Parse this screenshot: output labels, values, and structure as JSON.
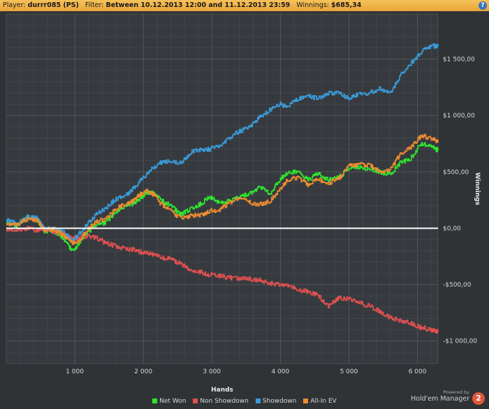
{
  "header": {
    "player_label": "Player:",
    "player_value": "durrr085 (PS)",
    "filter_label": "Filter:",
    "filter_value": "Between 10.12.2013 12:00 and 11.12.2013 23:59",
    "winnings_label": "Winnings:",
    "winnings_value": "$685,34",
    "help_glyph": "?"
  },
  "powered": {
    "line1": "Powered by",
    "line2": "Hold'em Manager",
    "logo_text": "2"
  },
  "chart_data": {
    "type": "line",
    "xlabel": "Hands",
    "ylabel": "Winnings",
    "xlim": [
      0,
      6300
    ],
    "ylim": [
      -1200,
      1900
    ],
    "x_ticks": [
      1000,
      2000,
      3000,
      4000,
      5000,
      6000
    ],
    "x_tick_labels": [
      "1 000",
      "2 000",
      "3 000",
      "4 000",
      "5 000",
      "6 000"
    ],
    "y_ticks": [
      1500,
      1000,
      500,
      0,
      -500,
      -1000
    ],
    "y_tick_labels": [
      "$1 500,00",
      "$1 000,00",
      "$500,00",
      "$0,00",
      "-$500,00",
      "-$1 000,00"
    ],
    "legend_position": "bottom",
    "grid": true,
    "zero_line_color": "#ffffff",
    "series": [
      {
        "name": "Net Won",
        "color": "#2ee62e",
        "x": [
          0,
          150,
          300,
          450,
          550,
          700,
          850,
          950,
          1050,
          1150,
          1300,
          1450,
          1600,
          1750,
          1850,
          1950,
          2050,
          2150,
          2250,
          2400,
          2550,
          2700,
          2850,
          2950,
          3100,
          3250,
          3400,
          3550,
          3700,
          3850,
          4000,
          4100,
          4250,
          4400,
          4550,
          4700,
          4850,
          5000,
          5150,
          5300,
          5450,
          5600,
          5750,
          5900,
          6050,
          6200,
          6300
        ],
        "y": [
          60,
          20,
          100,
          70,
          -20,
          -30,
          -100,
          -200,
          -150,
          -60,
          30,
          50,
          150,
          190,
          220,
          260,
          320,
          310,
          250,
          200,
          120,
          180,
          220,
          280,
          230,
          240,
          270,
          310,
          370,
          310,
          440,
          490,
          500,
          430,
          480,
          430,
          450,
          530,
          540,
          530,
          500,
          480,
          580,
          620,
          750,
          720,
          690
        ]
      },
      {
        "name": "Non Showdown",
        "color": "#e05050",
        "x": [
          0,
          150,
          300,
          450,
          550,
          700,
          850,
          950,
          1050,
          1150,
          1300,
          1450,
          1600,
          1750,
          1850,
          1950,
          2050,
          2150,
          2250,
          2400,
          2550,
          2700,
          2850,
          2950,
          3100,
          3250,
          3400,
          3550,
          3700,
          3850,
          4000,
          4100,
          4250,
          4400,
          4550,
          4700,
          4850,
          5000,
          5150,
          5300,
          5450,
          5600,
          5750,
          5900,
          6050,
          6200,
          6300
        ],
        "y": [
          -10,
          -20,
          0,
          -20,
          -10,
          -30,
          -60,
          -90,
          -90,
          -70,
          -80,
          -130,
          -160,
          -180,
          -190,
          -210,
          -220,
          -230,
          -260,
          -270,
          -320,
          -370,
          -390,
          -410,
          -420,
          -440,
          -450,
          -450,
          -460,
          -490,
          -500,
          -500,
          -550,
          -560,
          -600,
          -690,
          -620,
          -630,
          -660,
          -690,
          -740,
          -790,
          -820,
          -840,
          -880,
          -900,
          -920
        ]
      },
      {
        "name": "Showdown",
        "color": "#3a9ad9",
        "x": [
          0,
          150,
          300,
          450,
          550,
          700,
          850,
          950,
          1050,
          1150,
          1300,
          1450,
          1600,
          1750,
          1850,
          1950,
          2050,
          2150,
          2250,
          2400,
          2550,
          2700,
          2850,
          2950,
          3100,
          3250,
          3400,
          3550,
          3700,
          3850,
          4000,
          4100,
          4250,
          4400,
          4550,
          4700,
          4850,
          5000,
          5150,
          5300,
          5450,
          5600,
          5750,
          5900,
          6050,
          6200,
          6300
        ],
        "y": [
          70,
          40,
          100,
          90,
          -10,
          0,
          -40,
          -110,
          -60,
          10,
          120,
          180,
          260,
          300,
          350,
          420,
          480,
          540,
          580,
          600,
          580,
          680,
          700,
          700,
          730,
          800,
          860,
          900,
          990,
          1050,
          1100,
          1070,
          1150,
          1170,
          1150,
          1200,
          1200,
          1150,
          1200,
          1200,
          1240,
          1200,
          1350,
          1460,
          1560,
          1620,
          1610
        ]
      },
      {
        "name": "All-In EV",
        "color": "#f08c30",
        "x": [
          0,
          150,
          300,
          450,
          550,
          700,
          850,
          950,
          1050,
          1150,
          1300,
          1450,
          1600,
          1750,
          1850,
          1950,
          2050,
          2150,
          2250,
          2400,
          2550,
          2700,
          2850,
          2950,
          3100,
          3250,
          3400,
          3550,
          3700,
          3850,
          4000,
          4100,
          4250,
          4400,
          4550,
          4700,
          4850,
          5000,
          5150,
          5300,
          5450,
          5600,
          5750,
          5900,
          6050,
          6200,
          6300
        ],
        "y": [
          40,
          30,
          80,
          70,
          -10,
          -10,
          -70,
          -130,
          -120,
          -40,
          60,
          80,
          170,
          220,
          240,
          300,
          330,
          300,
          220,
          150,
          90,
          110,
          120,
          150,
          160,
          220,
          260,
          230,
          210,
          240,
          350,
          430,
          450,
          390,
          430,
          400,
          440,
          550,
          570,
          560,
          500,
          520,
          660,
          720,
          820,
          800,
          760
        ]
      }
    ]
  }
}
